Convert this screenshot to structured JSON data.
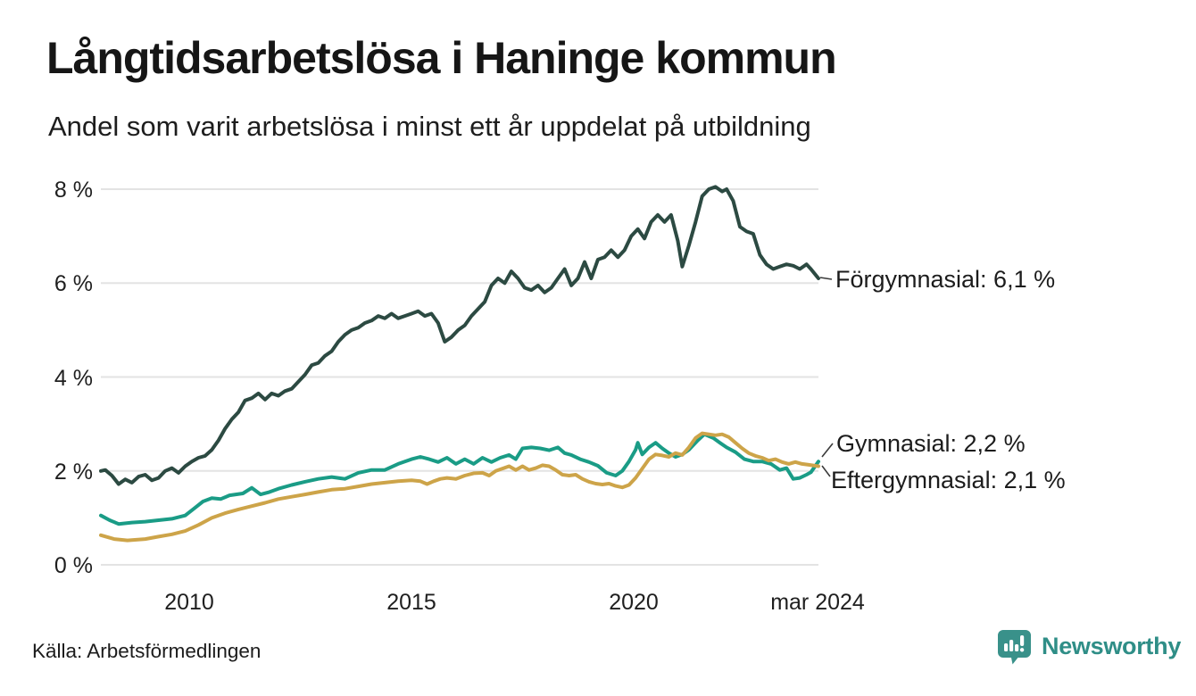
{
  "header": {
    "title": "Långtidsarbetslösa i Haninge kommun",
    "subtitle": "Andel som varit arbetslösa i minst ett år uppdelat på utbildning"
  },
  "footer": {
    "source": "Källa: Arbetsförmedlingen",
    "brand": "Newsworthy",
    "brand_color": "#2f8e87",
    "logo_color": "#39918a"
  },
  "chart_data": {
    "type": "line",
    "title": "Långtidsarbetslösa i Haninge kommun",
    "subtitle": "Andel som varit arbetslösa i minst ett år uppdelat på utbildning",
    "x_domain": [
      2008,
      2024.17
    ],
    "y_domain": [
      0,
      8
    ],
    "y_ticks": [
      0,
      2,
      4,
      6,
      8
    ],
    "y_tick_labels": [
      "0 %",
      "2 %",
      "4 %",
      "6 %",
      "8 %"
    ],
    "x_ticks": [
      2010,
      2015,
      2020,
      2024.17
    ],
    "x_tick_labels": [
      "2010",
      "2015",
      "2020",
      "mar 2024"
    ],
    "grid": "horizontal",
    "legend_position": "right-end-labels",
    "series": [
      {
        "name": "Förgymnasial",
        "color": "#2c4a42",
        "end_value": "6,1 %",
        "label": "Förgymnasial: 6,1 %",
        "points": [
          [
            2008.0,
            2.0
          ],
          [
            2008.1,
            2.02
          ],
          [
            2008.25,
            1.9
          ],
          [
            2008.4,
            1.72
          ],
          [
            2008.55,
            1.82
          ],
          [
            2008.7,
            1.75
          ],
          [
            2008.85,
            1.88
          ],
          [
            2009.0,
            1.92
          ],
          [
            2009.15,
            1.8
          ],
          [
            2009.3,
            1.85
          ],
          [
            2009.45,
            2.0
          ],
          [
            2009.6,
            2.06
          ],
          [
            2009.75,
            1.96
          ],
          [
            2009.9,
            2.1
          ],
          [
            2010.05,
            2.2
          ],
          [
            2010.2,
            2.28
          ],
          [
            2010.35,
            2.32
          ],
          [
            2010.5,
            2.45
          ],
          [
            2010.65,
            2.65
          ],
          [
            2010.8,
            2.9
          ],
          [
            2010.95,
            3.1
          ],
          [
            2011.1,
            3.25
          ],
          [
            2011.25,
            3.5
          ],
          [
            2011.4,
            3.55
          ],
          [
            2011.55,
            3.65
          ],
          [
            2011.7,
            3.52
          ],
          [
            2011.85,
            3.65
          ],
          [
            2012.0,
            3.6
          ],
          [
            2012.15,
            3.7
          ],
          [
            2012.3,
            3.75
          ],
          [
            2012.45,
            3.9
          ],
          [
            2012.6,
            4.05
          ],
          [
            2012.75,
            4.25
          ],
          [
            2012.9,
            4.3
          ],
          [
            2013.05,
            4.45
          ],
          [
            2013.2,
            4.55
          ],
          [
            2013.35,
            4.75
          ],
          [
            2013.5,
            4.9
          ],
          [
            2013.65,
            5.0
          ],
          [
            2013.8,
            5.05
          ],
          [
            2013.95,
            5.15
          ],
          [
            2014.1,
            5.2
          ],
          [
            2014.25,
            5.3
          ],
          [
            2014.4,
            5.25
          ],
          [
            2014.55,
            5.35
          ],
          [
            2014.7,
            5.25
          ],
          [
            2014.85,
            5.3
          ],
          [
            2015.0,
            5.35
          ],
          [
            2015.15,
            5.4
          ],
          [
            2015.3,
            5.3
          ],
          [
            2015.45,
            5.35
          ],
          [
            2015.6,
            5.15
          ],
          [
            2015.75,
            4.75
          ],
          [
            2015.9,
            4.85
          ],
          [
            2016.05,
            5.0
          ],
          [
            2016.2,
            5.1
          ],
          [
            2016.35,
            5.3
          ],
          [
            2016.5,
            5.45
          ],
          [
            2016.65,
            5.6
          ],
          [
            2016.8,
            5.95
          ],
          [
            2016.95,
            6.1
          ],
          [
            2017.1,
            6.0
          ],
          [
            2017.25,
            6.25
          ],
          [
            2017.4,
            6.1
          ],
          [
            2017.55,
            5.9
          ],
          [
            2017.7,
            5.85
          ],
          [
            2017.85,
            5.95
          ],
          [
            2018.0,
            5.8
          ],
          [
            2018.15,
            5.9
          ],
          [
            2018.3,
            6.1
          ],
          [
            2018.45,
            6.3
          ],
          [
            2018.6,
            5.95
          ],
          [
            2018.75,
            6.1
          ],
          [
            2018.9,
            6.45
          ],
          [
            2019.05,
            6.1
          ],
          [
            2019.2,
            6.5
          ],
          [
            2019.35,
            6.55
          ],
          [
            2019.5,
            6.7
          ],
          [
            2019.65,
            6.55
          ],
          [
            2019.8,
            6.7
          ],
          [
            2019.95,
            7.0
          ],
          [
            2020.1,
            7.15
          ],
          [
            2020.25,
            6.95
          ],
          [
            2020.4,
            7.3
          ],
          [
            2020.55,
            7.45
          ],
          [
            2020.7,
            7.3
          ],
          [
            2020.85,
            7.45
          ],
          [
            2021.0,
            6.9
          ],
          [
            2021.1,
            6.35
          ],
          [
            2021.25,
            6.8
          ],
          [
            2021.4,
            7.3
          ],
          [
            2021.55,
            7.85
          ],
          [
            2021.7,
            8.0
          ],
          [
            2021.85,
            8.05
          ],
          [
            2022.0,
            7.95
          ],
          [
            2022.1,
            8.0
          ],
          [
            2022.25,
            7.75
          ],
          [
            2022.4,
            7.2
          ],
          [
            2022.55,
            7.1
          ],
          [
            2022.7,
            7.05
          ],
          [
            2022.85,
            6.6
          ],
          [
            2023.0,
            6.4
          ],
          [
            2023.15,
            6.3
          ],
          [
            2023.3,
            6.35
          ],
          [
            2023.45,
            6.4
          ],
          [
            2023.6,
            6.37
          ],
          [
            2023.75,
            6.3
          ],
          [
            2023.9,
            6.4
          ],
          [
            2024.0,
            6.3
          ],
          [
            2024.17,
            6.1
          ]
        ]
      },
      {
        "name": "Gymnasial",
        "color": "#1a9c86",
        "end_value": "2,2 %",
        "label": "Gymnasial: 2,2 %",
        "points": [
          [
            2008.0,
            1.05
          ],
          [
            2008.2,
            0.95
          ],
          [
            2008.4,
            0.87
          ],
          [
            2008.7,
            0.9
          ],
          [
            2009.0,
            0.92
          ],
          [
            2009.3,
            0.95
          ],
          [
            2009.6,
            0.98
          ],
          [
            2009.9,
            1.05
          ],
          [
            2010.1,
            1.2
          ],
          [
            2010.3,
            1.35
          ],
          [
            2010.5,
            1.42
          ],
          [
            2010.7,
            1.4
          ],
          [
            2010.9,
            1.48
          ],
          [
            2011.2,
            1.52
          ],
          [
            2011.4,
            1.64
          ],
          [
            2011.6,
            1.5
          ],
          [
            2011.8,
            1.55
          ],
          [
            2012.0,
            1.62
          ],
          [
            2012.3,
            1.7
          ],
          [
            2012.6,
            1.77
          ],
          [
            2012.9,
            1.83
          ],
          [
            2013.2,
            1.87
          ],
          [
            2013.5,
            1.83
          ],
          [
            2013.8,
            1.96
          ],
          [
            2014.1,
            2.02
          ],
          [
            2014.4,
            2.02
          ],
          [
            2014.7,
            2.15
          ],
          [
            2015.0,
            2.25
          ],
          [
            2015.2,
            2.3
          ],
          [
            2015.4,
            2.25
          ],
          [
            2015.6,
            2.19
          ],
          [
            2015.8,
            2.28
          ],
          [
            2016.0,
            2.15
          ],
          [
            2016.2,
            2.25
          ],
          [
            2016.4,
            2.15
          ],
          [
            2016.6,
            2.28
          ],
          [
            2016.8,
            2.19
          ],
          [
            2017.0,
            2.28
          ],
          [
            2017.2,
            2.34
          ],
          [
            2017.35,
            2.25
          ],
          [
            2017.5,
            2.48
          ],
          [
            2017.7,
            2.5
          ],
          [
            2017.9,
            2.48
          ],
          [
            2018.1,
            2.44
          ],
          [
            2018.3,
            2.5
          ],
          [
            2018.45,
            2.38
          ],
          [
            2018.6,
            2.34
          ],
          [
            2018.8,
            2.25
          ],
          [
            2019.0,
            2.19
          ],
          [
            2019.2,
            2.11
          ],
          [
            2019.4,
            1.96
          ],
          [
            2019.6,
            1.9
          ],
          [
            2019.75,
            2.0
          ],
          [
            2019.9,
            2.2
          ],
          [
            2020.05,
            2.45
          ],
          [
            2020.1,
            2.6
          ],
          [
            2020.2,
            2.35
          ],
          [
            2020.35,
            2.5
          ],
          [
            2020.5,
            2.6
          ],
          [
            2020.65,
            2.48
          ],
          [
            2020.8,
            2.38
          ],
          [
            2020.95,
            2.3
          ],
          [
            2021.1,
            2.35
          ],
          [
            2021.25,
            2.45
          ],
          [
            2021.45,
            2.65
          ],
          [
            2021.6,
            2.78
          ],
          [
            2021.8,
            2.7
          ],
          [
            2021.95,
            2.6
          ],
          [
            2022.1,
            2.5
          ],
          [
            2022.3,
            2.4
          ],
          [
            2022.5,
            2.25
          ],
          [
            2022.7,
            2.2
          ],
          [
            2022.9,
            2.2
          ],
          [
            2023.1,
            2.15
          ],
          [
            2023.3,
            2.02
          ],
          [
            2023.45,
            2.06
          ],
          [
            2023.6,
            1.83
          ],
          [
            2023.75,
            1.85
          ],
          [
            2023.9,
            1.92
          ],
          [
            2024.0,
            1.97
          ],
          [
            2024.17,
            2.2
          ]
        ]
      },
      {
        "name": "Eftergymnasial",
        "color": "#cda449",
        "end_value": "2,1 %",
        "label": "Eftergymnasial: 2,1 %",
        "points": [
          [
            2008.0,
            0.63
          ],
          [
            2008.3,
            0.55
          ],
          [
            2008.6,
            0.52
          ],
          [
            2009.0,
            0.55
          ],
          [
            2009.3,
            0.6
          ],
          [
            2009.6,
            0.65
          ],
          [
            2009.9,
            0.72
          ],
          [
            2010.2,
            0.85
          ],
          [
            2010.5,
            1.0
          ],
          [
            2010.8,
            1.1
          ],
          [
            2011.1,
            1.18
          ],
          [
            2011.4,
            1.25
          ],
          [
            2011.7,
            1.32
          ],
          [
            2012.0,
            1.4
          ],
          [
            2012.3,
            1.45
          ],
          [
            2012.6,
            1.5
          ],
          [
            2012.9,
            1.55
          ],
          [
            2013.2,
            1.6
          ],
          [
            2013.5,
            1.62
          ],
          [
            2013.8,
            1.67
          ],
          [
            2014.1,
            1.72
          ],
          [
            2014.4,
            1.75
          ],
          [
            2014.7,
            1.78
          ],
          [
            2015.0,
            1.8
          ],
          [
            2015.2,
            1.78
          ],
          [
            2015.35,
            1.72
          ],
          [
            2015.5,
            1.78
          ],
          [
            2015.65,
            1.83
          ],
          [
            2015.8,
            1.85
          ],
          [
            2016.0,
            1.83
          ],
          [
            2016.2,
            1.9
          ],
          [
            2016.4,
            1.95
          ],
          [
            2016.6,
            1.96
          ],
          [
            2016.75,
            1.9
          ],
          [
            2016.9,
            2.0
          ],
          [
            2017.05,
            2.05
          ],
          [
            2017.2,
            2.1
          ],
          [
            2017.35,
            2.02
          ],
          [
            2017.5,
            2.1
          ],
          [
            2017.65,
            2.02
          ],
          [
            2017.8,
            2.06
          ],
          [
            2017.95,
            2.12
          ],
          [
            2018.1,
            2.1
          ],
          [
            2018.25,
            2.02
          ],
          [
            2018.4,
            1.92
          ],
          [
            2018.55,
            1.9
          ],
          [
            2018.7,
            1.92
          ],
          [
            2018.85,
            1.83
          ],
          [
            2019.0,
            1.77
          ],
          [
            2019.15,
            1.73
          ],
          [
            2019.3,
            1.71
          ],
          [
            2019.45,
            1.73
          ],
          [
            2019.6,
            1.68
          ],
          [
            2019.75,
            1.65
          ],
          [
            2019.9,
            1.7
          ],
          [
            2020.05,
            1.85
          ],
          [
            2020.2,
            2.05
          ],
          [
            2020.35,
            2.25
          ],
          [
            2020.5,
            2.35
          ],
          [
            2020.65,
            2.33
          ],
          [
            2020.8,
            2.3
          ],
          [
            2020.95,
            2.38
          ],
          [
            2021.1,
            2.34
          ],
          [
            2021.25,
            2.5
          ],
          [
            2021.4,
            2.7
          ],
          [
            2021.55,
            2.8
          ],
          [
            2021.7,
            2.78
          ],
          [
            2021.85,
            2.76
          ],
          [
            2022.0,
            2.78
          ],
          [
            2022.15,
            2.72
          ],
          [
            2022.3,
            2.6
          ],
          [
            2022.45,
            2.48
          ],
          [
            2022.6,
            2.38
          ],
          [
            2022.75,
            2.32
          ],
          [
            2022.9,
            2.28
          ],
          [
            2023.05,
            2.22
          ],
          [
            2023.2,
            2.25
          ],
          [
            2023.35,
            2.19
          ],
          [
            2023.5,
            2.15
          ],
          [
            2023.65,
            2.19
          ],
          [
            2023.8,
            2.15
          ],
          [
            2023.95,
            2.13
          ],
          [
            2024.17,
            2.1
          ]
        ]
      }
    ]
  },
  "axis": {
    "y_labels_top_to_bottom": [
      "8 %",
      "6 %",
      "4 %",
      "2 %",
      "0 %"
    ],
    "x_labels": [
      "2010",
      "2015",
      "2020",
      "mar 2024"
    ]
  }
}
